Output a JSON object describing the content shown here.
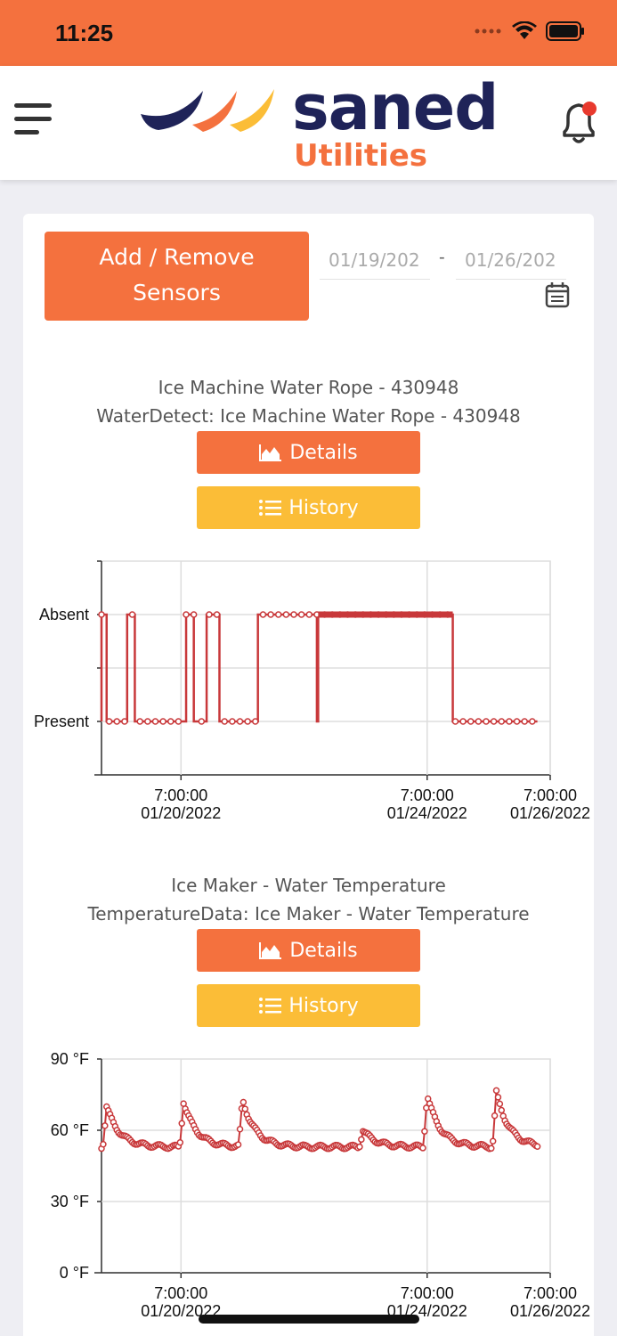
{
  "status_bar": {
    "time": "11:25"
  },
  "header": {
    "logo_word": "saned",
    "logo_sub": "Utilities"
  },
  "controls": {
    "add_remove_line1": "Add / Remove",
    "add_remove_line2": "Sensors",
    "date_from": "01/19/202",
    "date_to": "01/26/202",
    "date_separator": "-"
  },
  "sensors": [
    {
      "name": "Ice Machine Water Rope - 430948",
      "subtitle": "WaterDetect: Ice Machine Water Rope - 430948",
      "details_label": "Details",
      "history_label": "History"
    },
    {
      "name": "Ice Maker - Water Temperature",
      "subtitle": "TemperatureData: Ice Maker - Water Temperature",
      "details_label": "Details",
      "history_label": "History"
    }
  ],
  "chart_data": [
    {
      "type": "line",
      "title": "",
      "y_categories": [
        "Present",
        "Absent"
      ],
      "xlim": [
        "01/19/2022 00:00",
        "01/26/2022 07:00"
      ],
      "x_ticks": [
        {
          "time": "7:00:00",
          "date": "01/20/2022"
        },
        {
          "time": "7:00:00",
          "date": "01/24/2022"
        },
        {
          "time": "7:00:00",
          "date": "01/26/2022"
        }
      ],
      "grid": true,
      "color": "#c8383a",
      "segments_absent": [
        [
          "01/19/2022 00:00",
          "01/19/2022 02:00"
        ],
        [
          "01/19/2022 10:00",
          "01/19/2022 13:00"
        ],
        [
          "01/20/2022 09:00",
          "01/20/2022 12:00"
        ],
        [
          "01/20/2022 17:00",
          "01/20/2022 22:00"
        ],
        [
          "01/21/2022 13:00",
          "01/22/2022 12:00"
        ],
        [
          "01/22/2022 12:30",
          "01/24/2022 17:00"
        ]
      ]
    },
    {
      "type": "scatter",
      "title": "",
      "y_ticks": [
        "0 °F",
        "30 °F",
        "60 °F",
        "90 °F"
      ],
      "ylim": [
        0,
        90
      ],
      "xlim": [
        "01/19/2022 00:00",
        "01/26/2022 07:00"
      ],
      "x_ticks": [
        {
          "time": "7:00:00",
          "date": "01/20/2022"
        },
        {
          "time": "7:00:00",
          "date": "01/24/2022"
        },
        {
          "time": "7:00:00",
          "date": "01/26/2022"
        }
      ],
      "grid": true,
      "color": "#c8383a",
      "peaks": [
        {
          "x": "01/19/2022 02:00",
          "y": 70
        },
        {
          "x": "01/20/2022 08:00",
          "y": 72
        },
        {
          "x": "01/21/2022 07:00",
          "y": 73
        },
        {
          "x": "01/23/2022 06:00",
          "y": 60
        },
        {
          "x": "01/24/2022 07:00",
          "y": 75
        },
        {
          "x": "01/25/2022 10:00",
          "y": 76
        }
      ],
      "baseline_y": 53
    }
  ]
}
